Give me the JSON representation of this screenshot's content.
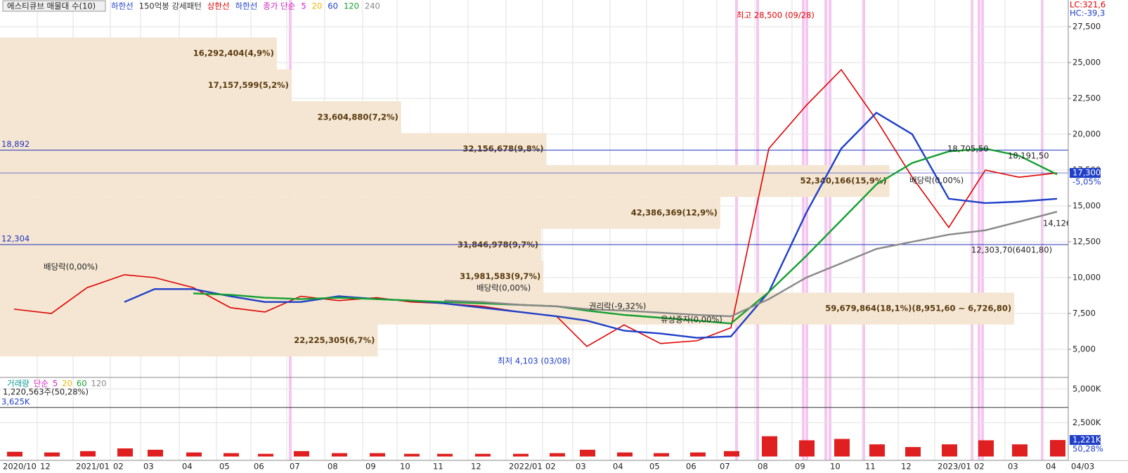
{
  "header": {
    "title": "에스티큐브 매물대 수(10)",
    "items": [
      {
        "text": "하한선",
        "color": "#1f3fc8"
      },
      {
        "text": "150억봉 강세패턴",
        "color": "#333333"
      },
      {
        "text": "상한선",
        "color": "#e00000"
      },
      {
        "text": "하한선",
        "color": "#1f3fc8"
      },
      {
        "text": "종가 단순",
        "color": "#d020c0"
      },
      {
        "text": "5",
        "color": "#d020c0"
      },
      {
        "text": "20",
        "color": "#f0b800"
      },
      {
        "text": "60",
        "color": "#1f3fc8"
      },
      {
        "text": "120",
        "color": "#14a030"
      },
      {
        "text": "240",
        "color": "#888888"
      }
    ],
    "lc": "LC:321,6",
    "hc": "HC:-39,3"
  },
  "chart_data": [
    {
      "type": "line",
      "categories": [
        "2020/10",
        "12",
        "2021/01",
        "02",
        "03",
        "04",
        "05",
        "06",
        "07",
        "08",
        "09",
        "10",
        "11",
        "12",
        "2022/01",
        "02",
        "03",
        "04",
        "05",
        "06",
        "07",
        "08",
        "09",
        "10",
        "11",
        "12",
        "2023/01",
        "02",
        "03",
        "04",
        "04/03"
      ],
      "series": [
        {
          "color": "#e00000",
          "values": [
            7800,
            7500,
            9300,
            10200,
            10000,
            9300,
            7900,
            7600,
            8700,
            8400,
            8600,
            8300,
            8200,
            8000,
            7600,
            7300,
            5200,
            6700,
            5400,
            5600,
            6500,
            19000,
            22000,
            24500,
            21000,
            17000,
            13500,
            17500,
            17000,
            17300,
            null
          ]
        },
        {
          "name": "60",
          "color": "#1f3fc8",
          "values": [
            null,
            null,
            null,
            8300,
            9200,
            9200,
            8700,
            8300,
            8300,
            8700,
            8500,
            8400,
            8200,
            7900,
            7600,
            7300,
            7000,
            6300,
            6100,
            5800,
            5900,
            9000,
            14500,
            19000,
            21500,
            20000,
            15500,
            15200,
            15300,
            15500,
            null
          ]
        },
        {
          "name": "120",
          "color": "#14a030",
          "values": [
            null,
            null,
            null,
            null,
            null,
            8900,
            8800,
            8600,
            8500,
            8600,
            8500,
            8400,
            8300,
            8200,
            8100,
            8000,
            7700,
            7400,
            7200,
            7000,
            6800,
            9000,
            11500,
            14000,
            16500,
            18000,
            18800,
            19000,
            18500,
            17200,
            null
          ]
        },
        {
          "name": "240",
          "color": "#888888",
          "values": [
            null,
            null,
            null,
            null,
            null,
            null,
            null,
            null,
            null,
            null,
            null,
            null,
            8400,
            8300,
            8100,
            8000,
            7800,
            7700,
            7550,
            7400,
            7300,
            8500,
            10000,
            11000,
            12000,
            12500,
            13000,
            13300,
            13900,
            14600,
            null
          ]
        }
      ],
      "ylim": [
        3137,
        29363
      ],
      "yticks": [
        {
          "value": 5000,
          "label": "5,000"
        },
        {
          "value": 7500,
          "label": "7,500"
        },
        {
          "value": 10000,
          "label": "10,000"
        },
        {
          "value": 12500,
          "label": "12,500"
        },
        {
          "value": 15000,
          "label": "15,000"
        },
        {
          "value": 17500,
          "label": "17,500"
        },
        {
          "value": 20000,
          "label": "20,000"
        },
        {
          "value": 22500,
          "label": "22,500"
        },
        {
          "value": 25000,
          "label": "25,000"
        },
        {
          "value": 27500,
          "label": "27,500"
        }
      ],
      "grid": true,
      "hlines": [
        {
          "value": 18892,
          "label": "18,892"
        },
        {
          "value": 12304,
          "label": "12,304"
        }
      ],
      "last": {
        "value": 17300,
        "label": "17,300",
        "change": "-5,05%"
      },
      "volume_profile": {
        "xlim": [
          0,
          62860000
        ],
        "bins": [
          26750,
          24525.2,
          22300.4,
          20075.6,
          17850.8,
          15626,
          13401.2,
          11176.4,
          8951.6,
          6726.8,
          4502
        ],
        "values": [
          16292404,
          17157599,
          23604880,
          32156678,
          52340166,
          42386369,
          31846978,
          31981583,
          59679864,
          22225305
        ],
        "value_labels": [
          "16,292,404(4,9%)",
          "17,157,599(5,2%)",
          "23,604,880(7,2%)",
          "32,156,678(9,8%)",
          "52,340,166(15,9%)",
          "42,386,369(12,9%)",
          "31,846,978(9,7%)",
          "31,981,583(9,7%)",
          "59,679,864(18,1%)(8,951,60 ~ 6,726,80)",
          "22,225,305(6,7%)"
        ]
      },
      "annotations": [
        "최고 28,500 (09/28)",
        "최저 4,103 (03/08)",
        "배당락(0,00%)",
        "배당락(0,00%)",
        "권리락(-9,32%)",
        "유상증자(0,00%)",
        "배당락(0,00%)",
        "18,705,50",
        "18,191,50",
        "14,126",
        "12,303,70(6401,80)"
      ]
    },
    {
      "type": "bar",
      "legend": [
        {
          "text": "거래량",
          "color": "#119999"
        },
        {
          "text": "단순",
          "color": "#d020c0"
        },
        {
          "text": "5",
          "color": "#d020c0"
        },
        {
          "text": "20",
          "color": "#f0b800"
        },
        {
          "text": "60",
          "color": "#14a030"
        },
        {
          "text": "120",
          "color": "#888888"
        }
      ],
      "summary": "1,220,563주(50,28%)",
      "values": [
        350,
        300,
        400,
        600,
        500,
        300,
        250,
        200,
        400,
        250,
        250,
        200,
        200,
        200,
        200,
        250,
        500,
        300,
        250,
        300,
        400,
        1500,
        1200,
        1300,
        900,
        700,
        900,
        1200,
        900,
        1221,
        null
      ],
      "color": "#e02020",
      "ylim": [
        -284,
        5795
      ],
      "yticks": [
        {
          "value": 2500,
          "label": "2,500K"
        },
        {
          "value": 5000,
          "label": "5,000K"
        }
      ],
      "avg_line": {
        "value": 3625,
        "label": "3,625K"
      },
      "last": {
        "value": 1221,
        "label": "1,221K",
        "change": "50,28%"
      }
    }
  ]
}
